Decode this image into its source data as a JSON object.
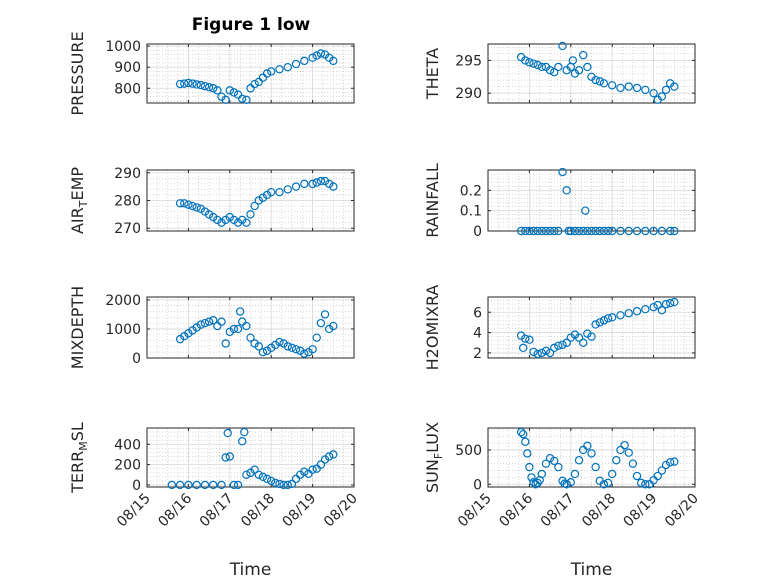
{
  "figure": {
    "title": "Figure 1 low"
  },
  "colors": {
    "marker": "#0072BD",
    "axis": "#262626",
    "grid": "#bdbdbd"
  },
  "chart_data": [
    {
      "type": "scatter",
      "id": "pressure",
      "ylabel": {
        "main": "PRESSURE",
        "sub": ""
      },
      "xlim": [
        0,
        5
      ],
      "ylim": [
        730,
        1010
      ],
      "yticks": [
        800,
        900,
        1000
      ],
      "ytick_labels": [
        "800",
        "900",
        "1000"
      ],
      "x": [
        0.8,
        0.9,
        1.0,
        1.1,
        1.2,
        1.3,
        1.4,
        1.5,
        1.6,
        1.7,
        1.8,
        1.9,
        2.0,
        2.1,
        2.2,
        2.3,
        2.4,
        2.5,
        2.6,
        2.7,
        2.8,
        2.9,
        3.0,
        3.2,
        3.4,
        3.6,
        3.8,
        4.0,
        4.1,
        4.2,
        4.3,
        4.4,
        4.5
      ],
      "y": [
        820,
        822,
        825,
        822,
        818,
        815,
        810,
        805,
        800,
        790,
        760,
        745,
        790,
        780,
        770,
        750,
        745,
        800,
        820,
        830,
        850,
        870,
        880,
        890,
        900,
        915,
        930,
        945,
        955,
        965,
        960,
        945,
        930
      ]
    },
    {
      "type": "scatter",
      "id": "theta",
      "ylabel": {
        "main": "THETA",
        "sub": ""
      },
      "xlim": [
        0,
        5
      ],
      "ylim": [
        288.5,
        297.5
      ],
      "yticks": [
        290,
        295
      ],
      "ytick_labels": [
        "290",
        "295"
      ],
      "x": [
        0.8,
        0.9,
        1.0,
        1.1,
        1.2,
        1.3,
        1.4,
        1.5,
        1.6,
        1.7,
        1.8,
        1.9,
        2.0,
        2.05,
        2.1,
        2.2,
        2.3,
        2.4,
        2.5,
        2.6,
        2.7,
        2.8,
        3.0,
        3.2,
        3.4,
        3.6,
        3.8,
        4.0,
        4.1,
        4.2,
        4.3,
        4.4,
        4.5
      ],
      "y": [
        295.5,
        295.0,
        294.7,
        294.5,
        294.3,
        294.0,
        294.0,
        293.5,
        293.2,
        294.0,
        297.2,
        293.5,
        294.0,
        295.0,
        293.0,
        293.5,
        295.8,
        294.0,
        292.5,
        292.0,
        291.8,
        291.5,
        291.2,
        290.8,
        291.0,
        290.8,
        290.5,
        290.0,
        289.0,
        289.5,
        290.5,
        291.5,
        291.0
      ]
    },
    {
      "type": "scatter",
      "id": "air_temp",
      "ylabel": {
        "main": "AIR",
        "sub": "T",
        "tail": "EMP"
      },
      "xlim": [
        0,
        5
      ],
      "ylim": [
        269,
        291
      ],
      "yticks": [
        270,
        280,
        290
      ],
      "ytick_labels": [
        "270",
        "280",
        "290"
      ],
      "x": [
        0.8,
        0.9,
        1.0,
        1.1,
        1.2,
        1.3,
        1.4,
        1.5,
        1.6,
        1.7,
        1.8,
        1.9,
        2.0,
        2.1,
        2.2,
        2.3,
        2.4,
        2.5,
        2.6,
        2.7,
        2.8,
        2.9,
        3.0,
        3.2,
        3.4,
        3.6,
        3.8,
        4.0,
        4.1,
        4.2,
        4.3,
        4.4,
        4.5
      ],
      "y": [
        279,
        279,
        278.5,
        278,
        277.5,
        277,
        276,
        275,
        274,
        273,
        272,
        273,
        274,
        273,
        272,
        273,
        272,
        275,
        278,
        280,
        281,
        282,
        283,
        283,
        284,
        285,
        286,
        286,
        286.5,
        287,
        287,
        286,
        285
      ]
    },
    {
      "type": "scatter",
      "id": "rainfall",
      "ylabel": {
        "main": "RAINFALL",
        "sub": ""
      },
      "xlim": [
        0,
        5
      ],
      "ylim": [
        0,
        0.3
      ],
      "yticks": [
        0,
        0.1,
        0.2
      ],
      "ytick_labels": [
        "0",
        "0.1",
        "0.2"
      ],
      "x": [
        0.8,
        0.9,
        1.0,
        1.1,
        1.2,
        1.3,
        1.4,
        1.5,
        1.6,
        1.7,
        1.8,
        1.9,
        1.95,
        2.0,
        2.1,
        2.2,
        2.3,
        2.35,
        2.4,
        2.5,
        2.6,
        2.7,
        2.8,
        2.9,
        3.0,
        3.2,
        3.4,
        3.6,
        3.8,
        4.0,
        4.2,
        4.4,
        4.5
      ],
      "y": [
        0,
        0,
        0,
        0,
        0,
        0,
        0,
        0,
        0,
        0,
        0.29,
        0.2,
        0,
        0,
        0,
        0,
        0,
        0.1,
        0,
        0,
        0,
        0,
        0,
        0,
        0,
        0,
        0,
        0,
        0,
        0,
        0,
        0,
        0
      ]
    },
    {
      "type": "scatter",
      "id": "mixdepth",
      "ylabel": {
        "main": "MIXDEPTH",
        "sub": ""
      },
      "xlim": [
        0,
        5
      ],
      "ylim": [
        0,
        2100
      ],
      "yticks": [
        0,
        1000,
        2000
      ],
      "ytick_labels": [
        "0",
        "1000",
        "2000"
      ],
      "x": [
        0.8,
        0.9,
        1.0,
        1.1,
        1.2,
        1.3,
        1.4,
        1.5,
        1.6,
        1.7,
        1.8,
        1.9,
        2.0,
        2.1,
        2.2,
        2.25,
        2.3,
        2.4,
        2.5,
        2.6,
        2.7,
        2.8,
        2.9,
        3.0,
        3.1,
        3.2,
        3.3,
        3.4,
        3.5,
        3.6,
        3.7,
        3.8,
        3.9,
        4.0,
        4.1,
        4.2,
        4.3,
        4.4,
        4.5
      ],
      "y": [
        650,
        750,
        850,
        950,
        1050,
        1150,
        1200,
        1250,
        1300,
        1100,
        1250,
        500,
        900,
        1000,
        1000,
        1600,
        1250,
        1100,
        700,
        500,
        400,
        200,
        250,
        350,
        450,
        550,
        500,
        400,
        350,
        300,
        250,
        150,
        200,
        300,
        700,
        1200,
        1500,
        1000,
        1100
      ]
    },
    {
      "type": "scatter",
      "id": "h2omixra",
      "ylabel": {
        "main": "H2OMIXRA",
        "sub": ""
      },
      "xlim": [
        0,
        5
      ],
      "ylim": [
        1.5,
        7.5
      ],
      "yticks": [
        2,
        4,
        6
      ],
      "ytick_labels": [
        "2",
        "4",
        "6"
      ],
      "x": [
        0.8,
        0.85,
        0.9,
        1.0,
        1.1,
        1.2,
        1.3,
        1.4,
        1.5,
        1.6,
        1.7,
        1.8,
        1.9,
        2.0,
        2.1,
        2.2,
        2.3,
        2.4,
        2.5,
        2.6,
        2.7,
        2.8,
        2.9,
        3.0,
        3.2,
        3.4,
        3.6,
        3.8,
        4.0,
        4.1,
        4.2,
        4.3,
        4.4,
        4.5
      ],
      "y": [
        3.7,
        2.5,
        3.4,
        3.3,
        2.1,
        1.9,
        2.0,
        2.2,
        2.0,
        2.5,
        2.7,
        2.8,
        3.0,
        3.5,
        3.8,
        3.5,
        3.0,
        3.9,
        3.6,
        4.8,
        5.0,
        5.2,
        5.4,
        5.5,
        5.7,
        5.9,
        6.1,
        6.3,
        6.5,
        6.7,
        6.2,
        6.8,
        6.9,
        7.0
      ]
    },
    {
      "type": "scatter",
      "id": "terr_msl",
      "ylabel": {
        "main": "TERR",
        "sub": "M",
        "tail": "SL"
      },
      "xlim": [
        0,
        5
      ],
      "ylim": [
        -20,
        560
      ],
      "yticks": [
        0,
        200,
        400
      ],
      "ytick_labels": [
        "0",
        "200",
        "400"
      ],
      "x": [
        0.6,
        0.8,
        1.0,
        1.2,
        1.4,
        1.6,
        1.8,
        1.9,
        1.95,
        2.0,
        2.1,
        2.2,
        2.3,
        2.35,
        2.4,
        2.5,
        2.6,
        2.7,
        2.8,
        2.9,
        3.0,
        3.1,
        3.2,
        3.3,
        3.4,
        3.5,
        3.6,
        3.7,
        3.8,
        3.9,
        4.0,
        4.1,
        4.2,
        4.3,
        4.4,
        4.5
      ],
      "y": [
        0,
        0,
        0,
        0,
        0,
        0,
        0,
        270,
        510,
        280,
        0,
        0,
        430,
        520,
        100,
        120,
        150,
        100,
        80,
        60,
        40,
        20,
        10,
        0,
        0,
        10,
        60,
        100,
        130,
        110,
        150,
        160,
        200,
        250,
        280,
        300
      ]
    },
    {
      "type": "scatter",
      "id": "sun_flux",
      "ylabel": {
        "main": "SUN",
        "sub": "F",
        "tail": "LUX"
      },
      "xlim": [
        0,
        5
      ],
      "ylim": [
        -40,
        820
      ],
      "yticks": [
        0,
        500
      ],
      "ytick_labels": [
        "0",
        "500"
      ],
      "x": [
        0.8,
        0.85,
        0.9,
        0.95,
        1.0,
        1.05,
        1.1,
        1.15,
        1.2,
        1.25,
        1.3,
        1.4,
        1.5,
        1.6,
        1.7,
        1.8,
        1.85,
        1.9,
        2.0,
        2.1,
        2.2,
        2.3,
        2.4,
        2.5,
        2.6,
        2.7,
        2.8,
        2.9,
        3.0,
        3.1,
        3.2,
        3.3,
        3.4,
        3.5,
        3.6,
        3.7,
        3.8,
        3.9,
        4.0,
        4.1,
        4.2,
        4.3,
        4.4,
        4.5
      ],
      "y": [
        760,
        730,
        620,
        450,
        250,
        100,
        30,
        0,
        20,
        60,
        150,
        300,
        380,
        340,
        250,
        50,
        10,
        0,
        30,
        150,
        350,
        500,
        560,
        450,
        250,
        50,
        0,
        20,
        150,
        350,
        500,
        570,
        460,
        300,
        120,
        20,
        0,
        0,
        60,
        120,
        200,
        280,
        320,
        330
      ]
    }
  ],
  "shared_x": {
    "label": "Time",
    "xticks": [
      0,
      1,
      2,
      3,
      4,
      5
    ],
    "xtick_labels": [
      "08/15",
      "08/16",
      "08/17",
      "08/18",
      "08/19",
      "08/20"
    ]
  }
}
